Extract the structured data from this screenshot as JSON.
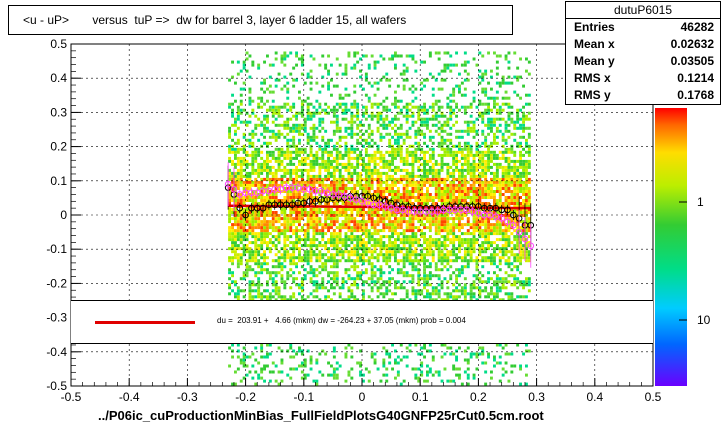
{
  "title": "<u - uP>       versus  tuP =>  dw for barrel 3, layer 6 ladder 15, all wafers",
  "stats": {
    "name": "dutuP6015",
    "rows": [
      {
        "label": "Entries",
        "value": "46282"
      },
      {
        "label": "Mean x",
        "value": "0.02632"
      },
      {
        "label": "Mean y",
        "value": "0.03505"
      },
      {
        "label": "RMS x",
        "value": "0.1214"
      },
      {
        "label": "RMS y",
        "value": "0.1768"
      }
    ]
  },
  "fit_legend": "du =  203.91 +   4.66 (mkm) dw = -264.23 + 37.05 (mkm) prob = 0.004",
  "x_title": "../P06ic_cuProductionMinBias_FullFieldPlotsG40GNFP25rCut0.5cm.root",
  "colors": {
    "fit": "#e00000",
    "profile_black": "#000000",
    "profile_magenta": "#ff44ff"
  },
  "chart_data": {
    "type": "scatter",
    "xlim": [
      -0.5,
      0.5
    ],
    "ylim": [
      -0.5,
      0.5
    ],
    "x_ticks": [
      "-0.5",
      "-0.4",
      "-0.3",
      "-0.2",
      "-0.1",
      "0",
      "0.1",
      "0.2",
      "0.3",
      "0.4",
      "0.5"
    ],
    "y_ticks": [
      "-0.5",
      "-0.4",
      "-0.3",
      "-0.2",
      "-0.1",
      "0",
      "0.1",
      "0.2",
      "0.3",
      "0.4",
      "0.5"
    ],
    "z_ticks": [
      "1",
      "10"
    ],
    "grid": true,
    "fit_line": {
      "x": [
        -0.23,
        0.29
      ],
      "y": [
        0.027,
        0.02
      ]
    },
    "series": [
      {
        "x": [
          -0.23,
          -0.22,
          -0.21,
          -0.2,
          -0.19,
          -0.18,
          -0.17,
          -0.16,
          -0.15,
          -0.14,
          -0.13,
          -0.12,
          -0.11,
          -0.1,
          -0.09,
          -0.08,
          -0.07,
          -0.06,
          -0.05,
          -0.04,
          -0.03,
          -0.02,
          -0.01,
          0.0,
          0.01,
          0.02,
          0.03,
          0.04,
          0.05,
          0.06,
          0.07,
          0.08,
          0.09,
          0.1,
          0.11,
          0.12,
          0.13,
          0.14,
          0.15,
          0.16,
          0.17,
          0.18,
          0.19,
          0.2,
          0.21,
          0.22,
          0.23,
          0.24,
          0.25,
          0.26,
          0.27,
          0.28,
          0.29
        ],
        "y": [
          0.08,
          0.06,
          0.02,
          0.0,
          0.02,
          0.02,
          0.02,
          0.03,
          0.03,
          0.03,
          0.03,
          0.03,
          0.035,
          0.035,
          0.04,
          0.04,
          0.045,
          0.045,
          0.05,
          0.05,
          0.05,
          0.055,
          0.055,
          0.055,
          0.055,
          0.05,
          0.045,
          0.04,
          0.035,
          0.03,
          0.025,
          0.025,
          0.02,
          0.02,
          0.02,
          0.02,
          0.02,
          0.02,
          0.025,
          0.025,
          0.025,
          0.025,
          0.025,
          0.025,
          0.02,
          0.02,
          0.02,
          0.015,
          0.015,
          0.0,
          -0.01,
          -0.03,
          -0.03
        ]
      },
      {
        "x": [
          -0.23,
          -0.22,
          -0.21,
          -0.2,
          -0.19,
          -0.18,
          -0.17,
          -0.16,
          -0.15,
          -0.14,
          -0.13,
          -0.12,
          -0.11,
          -0.1,
          -0.09,
          -0.08,
          -0.07,
          -0.06,
          -0.05,
          -0.04,
          -0.03,
          -0.02,
          -0.01,
          0.0,
          0.01,
          0.02,
          0.03,
          0.04,
          0.05,
          0.06,
          0.07,
          0.08,
          0.09,
          0.1,
          0.11,
          0.12,
          0.13,
          0.14,
          0.15,
          0.16,
          0.17,
          0.18,
          0.19,
          0.2,
          0.21,
          0.22,
          0.23,
          0.24,
          0.25,
          0.26,
          0.27,
          0.28,
          0.29
        ],
        "y": [
          0.09,
          0.075,
          0.06,
          0.065,
          0.065,
          0.065,
          0.07,
          0.07,
          0.075,
          0.075,
          0.08,
          0.08,
          0.08,
          0.075,
          0.075,
          0.07,
          0.07,
          0.065,
          0.06,
          0.06,
          0.055,
          0.05,
          0.045,
          0.04,
          0.035,
          0.03,
          0.03,
          0.025,
          0.02,
          0.015,
          0.015,
          0.01,
          0.01,
          0.01,
          0.01,
          0.01,
          0.01,
          0.015,
          0.015,
          0.015,
          0.015,
          0.015,
          0.01,
          0.005,
          0.0,
          0.0,
          -0.005,
          -0.01,
          -0.02,
          -0.03,
          -0.05,
          -0.07,
          -0.09
        ]
      }
    ]
  }
}
